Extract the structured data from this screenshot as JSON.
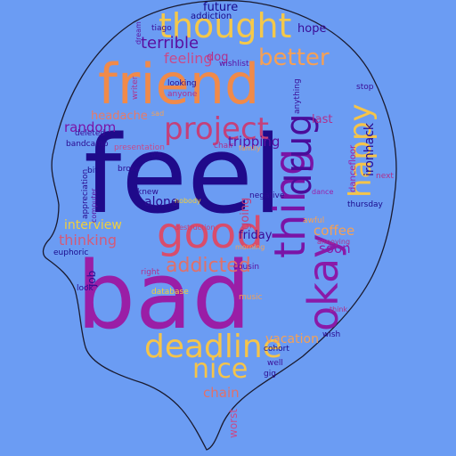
{
  "colors": {
    "background": "#6b9cf3",
    "silhouette": "#6b9cf3",
    "outline": "#1a1a2e",
    "palette": [
      "#1a0a8c",
      "#5a0fa0",
      "#9b1fa8",
      "#c4407a",
      "#e0706a",
      "#f5a055",
      "#f2cf3a"
    ]
  },
  "words": [
    {
      "text": "feel",
      "color": "#1f0a8a"
    },
    {
      "text": "bad",
      "color": "#9a1ea6"
    },
    {
      "text": "friend",
      "color": "#f08a4a"
    },
    {
      "text": "good",
      "color": "#d84d6c"
    },
    {
      "text": "thought",
      "color": "#f4c84a"
    },
    {
      "text": "project",
      "color": "#c4407a"
    },
    {
      "text": "deadline",
      "color": "#f5c44a"
    },
    {
      "text": "nice",
      "color": "#f5c44a"
    },
    {
      "text": "thing",
      "color": "#7a14a6"
    },
    {
      "text": "okay",
      "color": "#8a1aa8"
    },
    {
      "text": "drug",
      "color": "#4a0c9a"
    },
    {
      "text": "happy",
      "color": "#f5c44a"
    },
    {
      "text": "better",
      "color": "#f5a055"
    },
    {
      "text": "feeling",
      "color": "#c84a8a"
    },
    {
      "text": "terrible",
      "color": "#5a0fa0"
    },
    {
      "text": "dog",
      "color": "#b0308c"
    },
    {
      "text": "future",
      "color": "#1a0a8c"
    },
    {
      "text": "hope",
      "color": "#3a0c96"
    },
    {
      "text": "addicted",
      "color": "#e0706a"
    },
    {
      "text": "thinking",
      "color": "#d45a78"
    },
    {
      "text": "interview",
      "color": "#f2cf3a"
    },
    {
      "text": "alone",
      "color": "#2a0a90"
    },
    {
      "text": "headache",
      "color": "#e87a66"
    },
    {
      "text": "random",
      "color": "#7a14a6"
    },
    {
      "text": "tripping",
      "color": "#5a0fa0"
    },
    {
      "text": "coffee",
      "color": "#f5a055"
    },
    {
      "text": "soon",
      "color": "#8a1aa8"
    },
    {
      "text": "friday",
      "color": "#3a0c96"
    },
    {
      "text": "vacation",
      "color": "#f5a055"
    },
    {
      "text": "chain",
      "color": "#e0706a"
    },
    {
      "text": "ironhack",
      "color": "#2a0a90"
    },
    {
      "text": "going",
      "color": "#c4407a"
    },
    {
      "text": "job",
      "color": "#2a0a90"
    },
    {
      "text": "last",
      "color": "#b0308c"
    },
    {
      "text": "addiction",
      "color": "#1a0a8c"
    },
    {
      "text": "tiago",
      "color": "#3a0c96"
    },
    {
      "text": "wishlist",
      "color": "#5a0fa0"
    },
    {
      "text": "looking",
      "color": "#2a0a90"
    },
    {
      "text": "anyone",
      "color": "#b0308c"
    },
    {
      "text": "bandcamp",
      "color": "#2a0a90"
    },
    {
      "text": "deleted",
      "color": "#3a0c96"
    },
    {
      "text": "presentation",
      "color": "#c84a8a"
    },
    {
      "text": "chair",
      "color": "#b0308c"
    },
    {
      "text": "family",
      "color": "#f5a055"
    },
    {
      "text": "broke",
      "color": "#2a0a90"
    },
    {
      "text": "bit",
      "color": "#1a0a8c"
    },
    {
      "text": "knew",
      "color": "#2a0a90"
    },
    {
      "text": "stop",
      "color": "#3a0c96"
    },
    {
      "text": "thursday",
      "color": "#1a0a8c"
    },
    {
      "text": "next",
      "color": "#b0308c"
    },
    {
      "text": "negative",
      "color": "#2a0a90"
    },
    {
      "text": "awful",
      "color": "#f5a055"
    },
    {
      "text": "euphoric",
      "color": "#1a0a8c"
    },
    {
      "text": "look",
      "color": "#2a0a90"
    },
    {
      "text": "right",
      "color": "#b0308c"
    },
    {
      "text": "database",
      "color": "#f2cf3a"
    },
    {
      "text": "cousin",
      "color": "#5a0fa0"
    },
    {
      "text": "music",
      "color": "#f5a055"
    },
    {
      "text": "wish",
      "color": "#2a0a90"
    },
    {
      "text": "cohort",
      "color": "#1a0a8c"
    },
    {
      "text": "well",
      "color": "#3a0c96"
    },
    {
      "text": "gig",
      "color": "#2a0a90"
    },
    {
      "text": "think",
      "color": "#b0308c"
    },
    {
      "text": "worst",
      "color": "#c84a8a"
    },
    {
      "text": "dance",
      "color": "#9b1fa8"
    },
    {
      "text": "dancefloor",
      "color": "#9b1fa8"
    },
    {
      "text": "appreciation",
      "color": "#2a0a90"
    },
    {
      "text": "computer",
      "color": "#5a0fa0"
    },
    {
      "text": "destruction",
      "color": "#c4407a"
    },
    {
      "text": "morning",
      "color": "#f5a055"
    },
    {
      "text": "nobody",
      "color": "#f2cf3a"
    },
    {
      "text": "anything",
      "color": "#3a0c96"
    },
    {
      "text": "dream",
      "color": "#5a0fa0"
    },
    {
      "text": "writer",
      "color": "#b0308c"
    },
    {
      "text": "sad",
      "color": "#f5a055"
    },
    {
      "text": "die",
      "color": "#2a0a90"
    },
    {
      "text": "annoying",
      "color": "#b0308c"
    }
  ]
}
